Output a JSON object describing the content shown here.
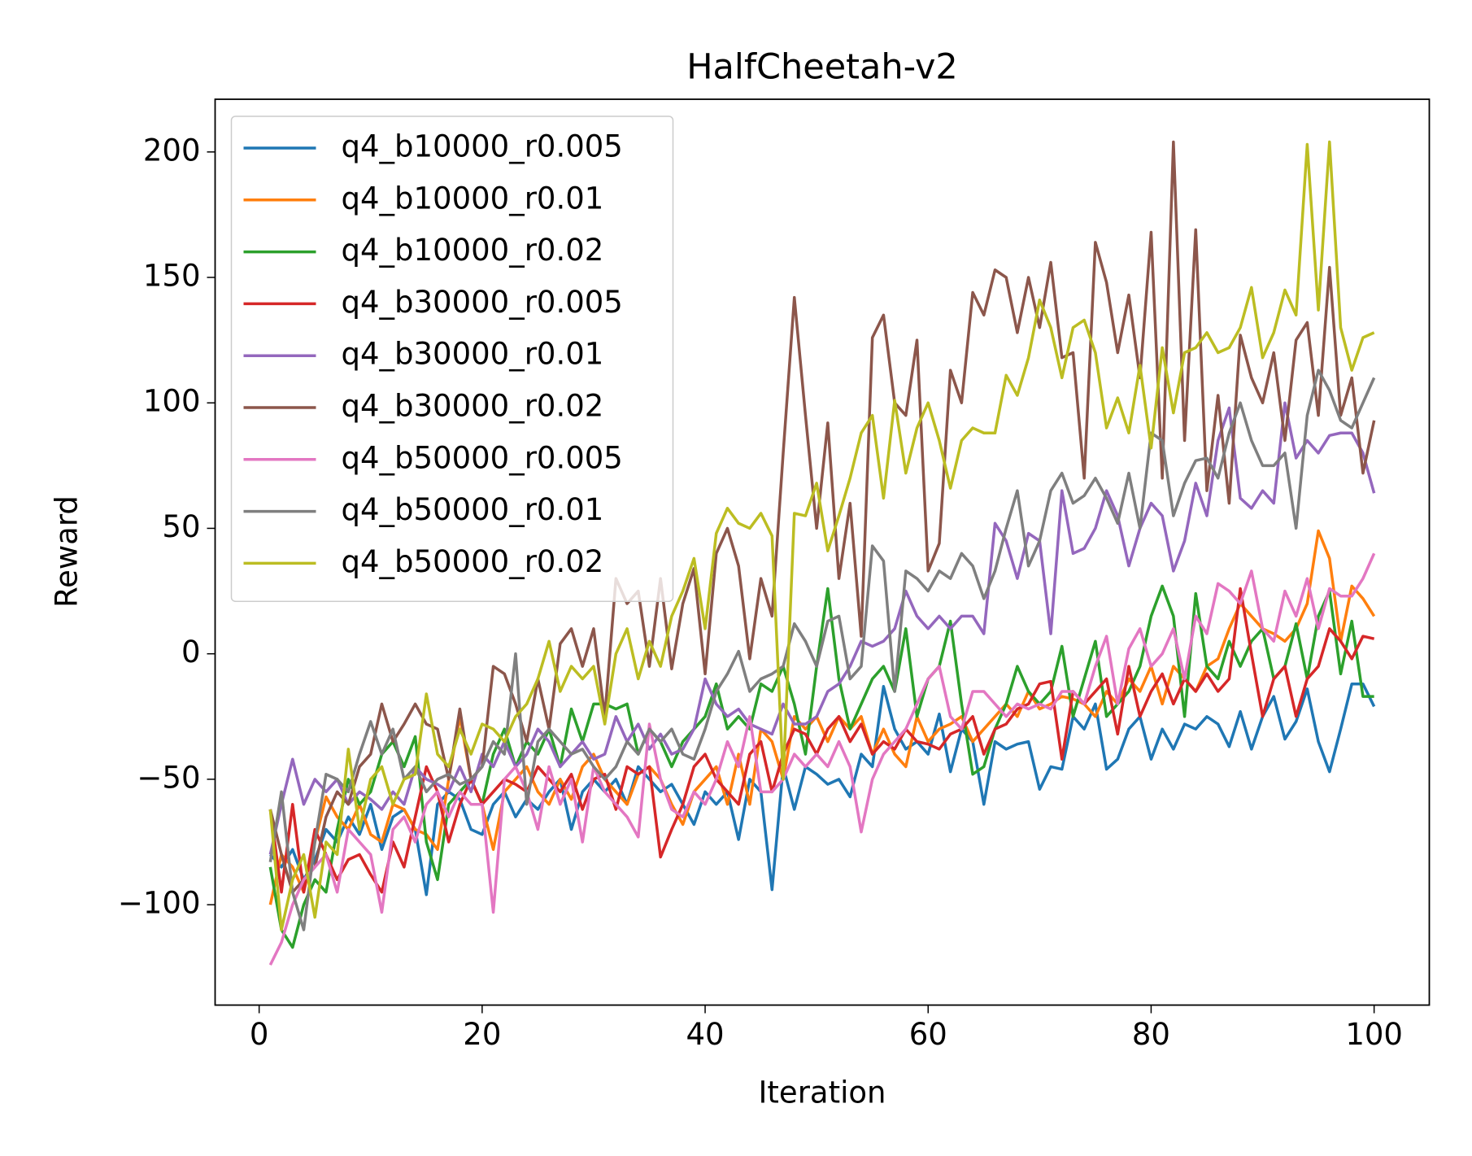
{
  "chart_data": {
    "type": "line",
    "title": "HalfCheetah-v2",
    "x_label": "Iteration",
    "y_label": "Reward",
    "x": [
      1,
      2,
      3,
      4,
      5,
      6,
      7,
      8,
      9,
      10,
      11,
      12,
      13,
      14,
      15,
      16,
      17,
      18,
      19,
      20,
      21,
      22,
      23,
      24,
      25,
      26,
      27,
      28,
      29,
      30,
      31,
      32,
      33,
      34,
      35,
      36,
      37,
      38,
      39,
      40,
      41,
      42,
      43,
      44,
      45,
      46,
      47,
      48,
      49,
      50,
      51,
      52,
      53,
      54,
      55,
      56,
      57,
      58,
      59,
      60,
      61,
      62,
      63,
      64,
      65,
      66,
      67,
      68,
      69,
      70,
      71,
      72,
      73,
      74,
      75,
      76,
      77,
      78,
      79,
      80,
      81,
      82,
      83,
      84,
      85,
      86,
      87,
      88,
      89,
      90,
      91,
      92,
      93,
      94,
      95,
      96,
      97,
      98,
      99,
      100
    ],
    "xlim": [
      -3.95,
      104.95
    ],
    "xticks": [
      0,
      20,
      40,
      60,
      80,
      100
    ],
    "ylim": [
      -140,
      221
    ],
    "yticks": [
      {
        "value": -100,
        "label": "−100"
      },
      {
        "value": -50,
        "label": "−50"
      },
      0,
      50,
      100,
      150,
      200
    ],
    "legend": "upper left",
    "series": [
      {
        "name": "q4_b10000_r0.005",
        "color": "#1f77b4",
        "values": [
          -80,
          -85,
          -78,
          -90,
          -82,
          -70,
          -75,
          -65,
          -72,
          -60,
          -78,
          -65,
          -62,
          -70,
          -96,
          -60,
          -55,
          -58,
          -70,
          -72,
          -60,
          -55,
          -65,
          -58,
          -62,
          -55,
          -50,
          -70,
          -55,
          -50,
          -55,
          -50,
          -60,
          -45,
          -50,
          -55,
          -52,
          -60,
          -68,
          -55,
          -60,
          -55,
          -74,
          -50,
          -55,
          -94,
          -45,
          -62,
          -45,
          -48,
          -52,
          -50,
          -57,
          -40,
          -45,
          -13,
          -30,
          -38,
          -35,
          -40,
          -24,
          -47,
          -30,
          -35,
          -60,
          -35,
          -38,
          -36,
          -35,
          -54,
          -45,
          -46,
          -25,
          -30,
          -20,
          -46,
          -42,
          -30,
          -25,
          -42,
          -30,
          -38,
          -28,
          -30,
          -25,
          -28,
          -37,
          -23,
          -38,
          -25,
          -17,
          -34,
          -27,
          -14,
          -35,
          -47,
          -30,
          -12,
          -12,
          -21
        ]
      },
      {
        "name": "q4_b10000_r0.01",
        "color": "#ff7f0e",
        "values": [
          -100,
          -80,
          -85,
          -95,
          -75,
          -57,
          -65,
          -70,
          -60,
          -72,
          -75,
          -60,
          -62,
          -70,
          -72,
          -78,
          -50,
          -25,
          -50,
          -60,
          -78,
          -55,
          -50,
          -45,
          -55,
          -60,
          -50,
          -58,
          -45,
          -40,
          -50,
          -55,
          -60,
          -48,
          -45,
          -50,
          -60,
          -68,
          -55,
          -50,
          -45,
          -60,
          -40,
          -60,
          -30,
          -35,
          -50,
          -25,
          -30,
          -25,
          -35,
          -25,
          -30,
          -25,
          -40,
          -30,
          -40,
          -45,
          -25,
          -35,
          -30,
          -28,
          -25,
          -35,
          -30,
          -25,
          -20,
          -25,
          -15,
          -22,
          -20,
          -17,
          -18,
          -20,
          -25,
          -15,
          -20,
          -10,
          -15,
          -5,
          -20,
          -5,
          -10,
          -15,
          -5,
          -2,
          10,
          20,
          15,
          10,
          8,
          5,
          10,
          20,
          49,
          38,
          5,
          27,
          22,
          15
        ]
      },
      {
        "name": "q4_b10000_r0.02",
        "color": "#2ca02c",
        "values": [
          -85,
          -110,
          -117,
          -100,
          -90,
          -95,
          -70,
          -50,
          -60,
          -55,
          -40,
          -35,
          -45,
          -33,
          -75,
          -90,
          -60,
          -55,
          -50,
          -60,
          -40,
          -30,
          -45,
          -35,
          -40,
          -30,
          -45,
          -22,
          -35,
          -20,
          -20,
          -22,
          -20,
          -40,
          -30,
          -35,
          -45,
          -35,
          -30,
          -25,
          -12,
          -30,
          -25,
          -30,
          -12,
          -15,
          -5,
          -20,
          -40,
          -5,
          26,
          -10,
          -30,
          -20,
          -10,
          -5,
          -15,
          10,
          -25,
          -10,
          -5,
          13,
          -20,
          -48,
          -45,
          -30,
          -20,
          -5,
          -15,
          -20,
          -15,
          3,
          -25,
          -10,
          5,
          -25,
          -20,
          -15,
          -5,
          15,
          27,
          15,
          -25,
          24,
          -5,
          -10,
          5,
          -5,
          5,
          10,
          -10,
          -5,
          12,
          -10,
          15,
          25,
          -8,
          13,
          -17,
          -17
        ]
      },
      {
        "name": "q4_b30000_r0.005",
        "color": "#d62728",
        "values": [
          -62,
          -95,
          -60,
          -95,
          -70,
          -80,
          -90,
          -82,
          -80,
          -88,
          -95,
          -75,
          -85,
          -65,
          -45,
          -55,
          -75,
          -60,
          -50,
          -60,
          -55,
          -50,
          -52,
          -55,
          -45,
          -50,
          -55,
          -48,
          -62,
          -50,
          -48,
          -62,
          -45,
          -48,
          -45,
          -81,
          -70,
          -60,
          -45,
          -40,
          -50,
          -55,
          -60,
          -40,
          -35,
          -55,
          -40,
          -30,
          -32,
          -40,
          -30,
          -25,
          -35,
          -28,
          -40,
          -35,
          -38,
          -30,
          -35,
          -36,
          -38,
          -32,
          -30,
          -25,
          -40,
          -30,
          -28,
          -22,
          -20,
          -12,
          -11,
          -42,
          -15,
          -20,
          -15,
          -10,
          -32,
          -5,
          -25,
          -15,
          -8,
          -20,
          -10,
          -15,
          -8,
          -15,
          -10,
          26,
          0,
          -25,
          -10,
          -5,
          -25,
          -10,
          -5,
          10,
          5,
          -2,
          7,
          6
        ]
      },
      {
        "name": "q4_b30000_r0.01",
        "color": "#9467bd",
        "values": [
          -80,
          -60,
          -42,
          -60,
          -50,
          -55,
          -50,
          -60,
          -55,
          -58,
          -62,
          -55,
          -60,
          -45,
          -50,
          -52,
          -55,
          -45,
          -55,
          -40,
          -45,
          -35,
          -45,
          -40,
          -30,
          -35,
          -45,
          -40,
          -35,
          -42,
          -40,
          -25,
          -35,
          -28,
          -38,
          -32,
          -40,
          -38,
          -30,
          -10,
          -20,
          -25,
          -22,
          -28,
          -30,
          -32,
          -20,
          -28,
          -28,
          -25,
          -15,
          -12,
          -5,
          5,
          3,
          5,
          10,
          25,
          15,
          10,
          15,
          10,
          15,
          15,
          8,
          52,
          45,
          30,
          48,
          45,
          8,
          65,
          40,
          42,
          50,
          65,
          55,
          35,
          50,
          60,
          55,
          33,
          45,
          68,
          55,
          85,
          98,
          62,
          58,
          65,
          60,
          100,
          78,
          85,
          80,
          87,
          88,
          88,
          80,
          64
        ]
      },
      {
        "name": "q4_b30000_r0.02",
        "color": "#8c564b",
        "values": [
          -62,
          -80,
          -95,
          -90,
          -85,
          -65,
          -55,
          -60,
          -45,
          -40,
          -20,
          -35,
          -28,
          -20,
          -28,
          -30,
          -50,
          -22,
          -50,
          -45,
          -5,
          -8,
          -20,
          -35,
          -10,
          -30,
          4,
          10,
          -5,
          10,
          -25,
          30,
          20,
          25,
          -5,
          30,
          -6,
          20,
          34,
          -8,
          40,
          50,
          35,
          -2,
          30,
          15,
          80,
          142,
          95,
          50,
          92,
          30,
          60,
          7,
          126,
          135,
          100,
          95,
          125,
          33,
          44,
          113,
          100,
          144,
          135,
          153,
          150,
          128,
          150,
          130,
          156,
          118,
          120,
          70,
          164,
          148,
          120,
          143,
          110,
          168,
          70,
          204,
          85,
          169,
          65,
          103,
          60,
          127,
          110,
          100,
          120,
          85,
          125,
          132,
          95,
          154,
          95,
          110,
          72,
          93
        ]
      },
      {
        "name": "q4_b50000_r0.005",
        "color": "#e377c2",
        "values": [
          -124,
          -115,
          -100,
          -90,
          -85,
          -80,
          -95,
          -70,
          -75,
          -80,
          -103,
          -70,
          -65,
          -75,
          -60,
          -55,
          -65,
          -55,
          -60,
          -60,
          -103,
          -50,
          -45,
          -55,
          -70,
          -45,
          -60,
          -50,
          -75,
          -45,
          -55,
          -60,
          -65,
          -73,
          -28,
          -50,
          -62,
          -65,
          -55,
          -60,
          -50,
          -35,
          -45,
          -25,
          -55,
          -55,
          -50,
          -40,
          -45,
          -40,
          -45,
          -35,
          -45,
          -71,
          -50,
          -40,
          -35,
          -30,
          -20,
          -10,
          -5,
          -25,
          -30,
          -15,
          -15,
          -20,
          -25,
          -20,
          -22,
          -20,
          -22,
          -15,
          -15,
          -20,
          -5,
          7,
          -20,
          2,
          10,
          -5,
          0,
          10,
          -10,
          15,
          8,
          28,
          25,
          20,
          33,
          10,
          5,
          25,
          15,
          30,
          10,
          26,
          23,
          23,
          30,
          40
        ]
      },
      {
        "name": "q4_b50000_r0.01",
        "color": "#7f7f7f",
        "values": [
          -83,
          -55,
          -95,
          -110,
          -75,
          -48,
          -50,
          -55,
          -40,
          -27,
          -40,
          -30,
          -50,
          -45,
          -55,
          -50,
          -48,
          -52,
          -50,
          -45,
          -35,
          -40,
          0,
          -60,
          -35,
          -30,
          -35,
          -40,
          -38,
          -45,
          -50,
          -45,
          -35,
          -40,
          -30,
          -35,
          -30,
          -40,
          -42,
          -30,
          -15,
          -8,
          1,
          -15,
          -10,
          -8,
          -5,
          12,
          5,
          -5,
          13,
          15,
          -10,
          -5,
          43,
          37,
          -15,
          33,
          30,
          25,
          33,
          30,
          40,
          35,
          22,
          33,
          50,
          65,
          35,
          45,
          65,
          72,
          60,
          63,
          70,
          62,
          52,
          72,
          50,
          88,
          85,
          55,
          68,
          77,
          78,
          70,
          88,
          100,
          85,
          75,
          75,
          80,
          50,
          95,
          113,
          105,
          93,
          90,
          100,
          110
        ]
      },
      {
        "name": "q4_b50000_r0.02",
        "color": "#bcbd22",
        "values": [
          -62,
          -110,
          -90,
          -80,
          -105,
          -75,
          -80,
          -38,
          -70,
          -50,
          -45,
          -60,
          -50,
          -48,
          -16,
          -40,
          -45,
          -30,
          -40,
          -28,
          -30,
          -35,
          -25,
          -20,
          -10,
          5,
          -15,
          -5,
          -10,
          -5,
          -28,
          0,
          10,
          -10,
          5,
          -5,
          15,
          25,
          38,
          10,
          48,
          58,
          52,
          50,
          56,
          47,
          -50,
          56,
          55,
          68,
          41,
          55,
          70,
          88,
          95,
          62,
          101,
          72,
          90,
          100,
          85,
          66,
          85,
          90,
          88,
          88,
          111,
          103,
          118,
          141,
          130,
          110,
          130,
          133,
          120,
          90,
          102,
          88,
          115,
          82,
          122,
          96,
          120,
          122,
          128,
          120,
          122,
          130,
          146,
          118,
          128,
          145,
          135,
          203,
          137,
          204,
          130,
          113,
          126,
          128
        ]
      }
    ]
  }
}
